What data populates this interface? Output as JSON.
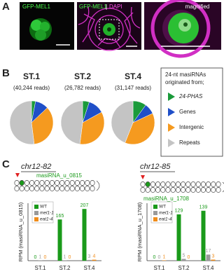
{
  "panel_labels": [
    "A",
    "B",
    "C"
  ],
  "panel_a": {
    "image_1": "GFP-MEL1",
    "image_2": [
      "GFP-MEL1",
      "DAPI"
    ],
    "image_3": "magnified"
  },
  "pie_legend": {
    "title_lines": [
      "24-nt masiRNAs",
      "originated from;"
    ]
  },
  "panel_c": {
    "loci": [
      {
        "name": "chr12-82",
        "mirna": "masiRNA_u_0815"
      },
      {
        "name": "chr12-85",
        "mirna": "masiRNA_u_1708"
      }
    ]
  },
  "chart_data": [
    {
      "type": "pie",
      "title": "ST.1",
      "subtitle": "(40,244 reads)",
      "categories": [
        "24-PHAS",
        "Genes",
        "Intergenic",
        "Repeats"
      ],
      "values": [
        3,
        10,
        35,
        52
      ],
      "colors": [
        "#1a9a3a",
        "#1f4fc8",
        "#f59a1f",
        "#c4c4c4"
      ]
    },
    {
      "type": "pie",
      "title": "ST.2",
      "subtitle": "(26,782 reads)",
      "categories": [
        "24-PHAS",
        "Genes",
        "Intergenic",
        "Repeats"
      ],
      "values": [
        5,
        12,
        35,
        48
      ],
      "colors": [
        "#1a9a3a",
        "#1f4fc8",
        "#f59a1f",
        "#c4c4c4"
      ]
    },
    {
      "type": "pie",
      "title": "ST.4",
      "subtitle": "(31,147 reads)",
      "categories": [
        "24-PHAS",
        "Genes",
        "Intergenic",
        "Repeats"
      ],
      "values": [
        10,
        8,
        38,
        44
      ],
      "colors": [
        "#1a9a3a",
        "#1f4fc8",
        "#f59a1f",
        "#c4c4c4"
      ]
    },
    {
      "type": "bar",
      "y_label": "RPM (masiRNA_u_0815)",
      "categories": [
        "ST.1",
        "ST.2",
        "ST.4"
      ],
      "ylim": [
        0,
        230
      ],
      "series": [
        {
          "name": "WT",
          "color": "#1a9a1a",
          "values": [
            0,
            165,
            207
          ]
        },
        {
          "name": "mel1-1",
          "color": "#999999",
          "values": [
            1,
            1,
            3
          ]
        },
        {
          "name": "eat1-4",
          "color": "#f08c1a",
          "values": [
            0,
            0,
            4
          ]
        }
      ]
    },
    {
      "type": "bar",
      "y_label": "RPM (masiRNA_u_1708)",
      "categories": [
        "ST.1",
        "ST.2",
        "ST.4"
      ],
      "ylim": [
        0,
        160
      ],
      "series": [
        {
          "name": "WT",
          "color": "#1a9a1a",
          "values": [
            0,
            129,
            139
          ]
        },
        {
          "name": "mel1-1",
          "color": "#999999",
          "values": [
            0,
            5,
            17
          ]
        },
        {
          "name": "eat1-4",
          "color": "#f08c1a",
          "values": [
            1,
            0,
            3
          ]
        }
      ]
    }
  ]
}
